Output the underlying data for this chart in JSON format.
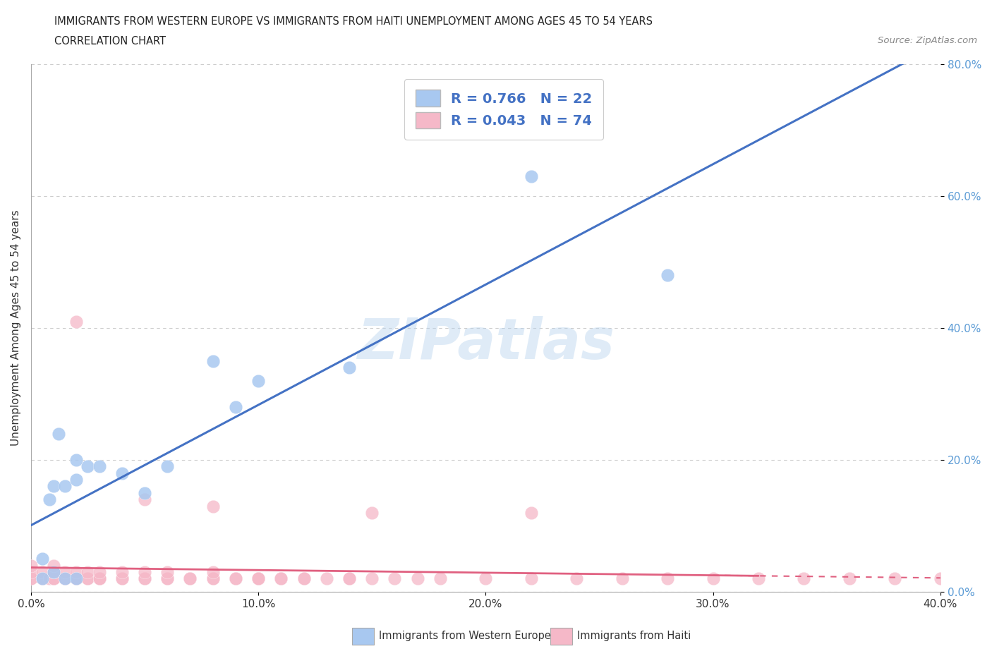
{
  "title_line1": "IMMIGRANTS FROM WESTERN EUROPE VS IMMIGRANTS FROM HAITI UNEMPLOYMENT AMONG AGES 45 TO 54 YEARS",
  "title_line2": "CORRELATION CHART",
  "source": "Source: ZipAtlas.com",
  "ylabel": "Unemployment Among Ages 45 to 54 years",
  "watermark_text": "ZIPatlas",
  "xlim": [
    0.0,
    0.4
  ],
  "ylim": [
    0.0,
    0.8
  ],
  "ytick_vals": [
    0.0,
    0.2,
    0.4,
    0.6,
    0.8
  ],
  "xtick_vals": [
    0.0,
    0.1,
    0.2,
    0.3,
    0.4
  ],
  "blue_color": "#a8c8f0",
  "pink_color": "#f5b8c8",
  "blue_line_color": "#4472c4",
  "pink_line_color": "#e06080",
  "grid_color": "#cccccc",
  "bg_color": "#ffffff",
  "legend_label_blue": "R = 0.766   N = 22",
  "legend_label_pink": "R = 0.043   N = 74",
  "legend_text_color": "#4472c4",
  "blue_x": [
    0.005,
    0.005,
    0.008,
    0.01,
    0.01,
    0.012,
    0.015,
    0.015,
    0.02,
    0.02,
    0.02,
    0.025,
    0.03,
    0.04,
    0.05,
    0.06,
    0.08,
    0.09,
    0.1,
    0.14,
    0.22,
    0.28
  ],
  "blue_y": [
    0.02,
    0.05,
    0.14,
    0.03,
    0.16,
    0.24,
    0.16,
    0.02,
    0.17,
    0.02,
    0.2,
    0.19,
    0.19,
    0.18,
    0.15,
    0.19,
    0.35,
    0.28,
    0.32,
    0.34,
    0.63,
    0.48
  ],
  "pink_x": [
    0.0,
    0.0,
    0.0,
    0.0,
    0.005,
    0.005,
    0.005,
    0.008,
    0.01,
    0.01,
    0.01,
    0.01,
    0.01,
    0.01,
    0.015,
    0.015,
    0.015,
    0.02,
    0.02,
    0.02,
    0.02,
    0.025,
    0.025,
    0.025,
    0.03,
    0.03,
    0.03,
    0.03,
    0.04,
    0.04,
    0.04,
    0.05,
    0.05,
    0.05,
    0.06,
    0.06,
    0.06,
    0.07,
    0.07,
    0.08,
    0.08,
    0.08,
    0.09,
    0.09,
    0.1,
    0.1,
    0.1,
    0.11,
    0.11,
    0.12,
    0.12,
    0.13,
    0.14,
    0.14,
    0.15,
    0.16,
    0.17,
    0.18,
    0.2,
    0.22,
    0.24,
    0.26,
    0.28,
    0.3,
    0.32,
    0.34,
    0.36,
    0.38,
    0.4,
    0.02,
    0.05,
    0.08,
    0.15,
    0.22
  ],
  "pink_y": [
    0.02,
    0.02,
    0.03,
    0.04,
    0.02,
    0.02,
    0.03,
    0.02,
    0.02,
    0.02,
    0.02,
    0.03,
    0.03,
    0.04,
    0.02,
    0.02,
    0.03,
    0.02,
    0.02,
    0.02,
    0.03,
    0.02,
    0.02,
    0.03,
    0.02,
    0.02,
    0.02,
    0.03,
    0.02,
    0.02,
    0.03,
    0.02,
    0.02,
    0.03,
    0.02,
    0.02,
    0.03,
    0.02,
    0.02,
    0.02,
    0.02,
    0.03,
    0.02,
    0.02,
    0.02,
    0.02,
    0.02,
    0.02,
    0.02,
    0.02,
    0.02,
    0.02,
    0.02,
    0.02,
    0.02,
    0.02,
    0.02,
    0.02,
    0.02,
    0.02,
    0.02,
    0.02,
    0.02,
    0.02,
    0.02,
    0.02,
    0.02,
    0.02,
    0.02,
    0.41,
    0.14,
    0.13,
    0.12,
    0.12
  ]
}
